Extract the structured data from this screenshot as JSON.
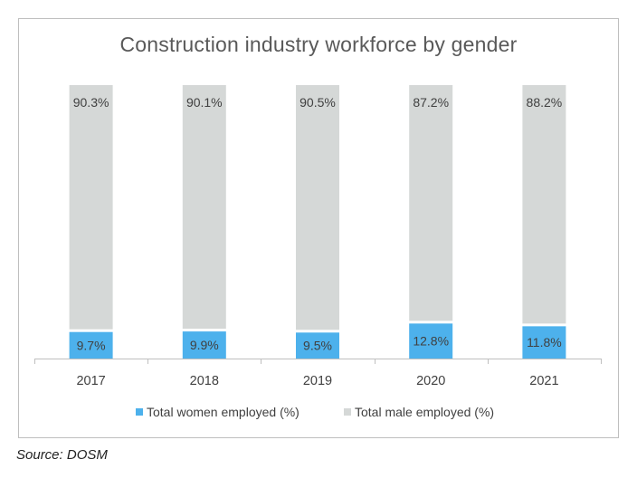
{
  "chart_data": {
    "type": "bar",
    "stacked": true,
    "title": "Construction industry workforce by gender",
    "xlabel": "",
    "ylabel": "",
    "ylim": [
      0,
      100
    ],
    "categories": [
      "2017",
      "2018",
      "2019",
      "2020",
      "2021"
    ],
    "series": [
      {
        "name": "Total women employed (%)",
        "color": "#4db1ec",
        "values": [
          9.7,
          9.9,
          9.5,
          12.8,
          11.8
        ],
        "labels": [
          "9.7%",
          "9.9%",
          "9.5%",
          "12.8%",
          "11.8%"
        ]
      },
      {
        "name": "Total male employed (%)",
        "color": "#d5d8d7",
        "values": [
          90.3,
          90.1,
          90.5,
          87.2,
          88.2
        ],
        "labels": [
          "90.3%",
          "90.1%",
          "90.5%",
          "87.2%",
          "88.2%"
        ]
      }
    ],
    "legend_position": "bottom",
    "grid": false
  },
  "source": "Source: DOSM"
}
